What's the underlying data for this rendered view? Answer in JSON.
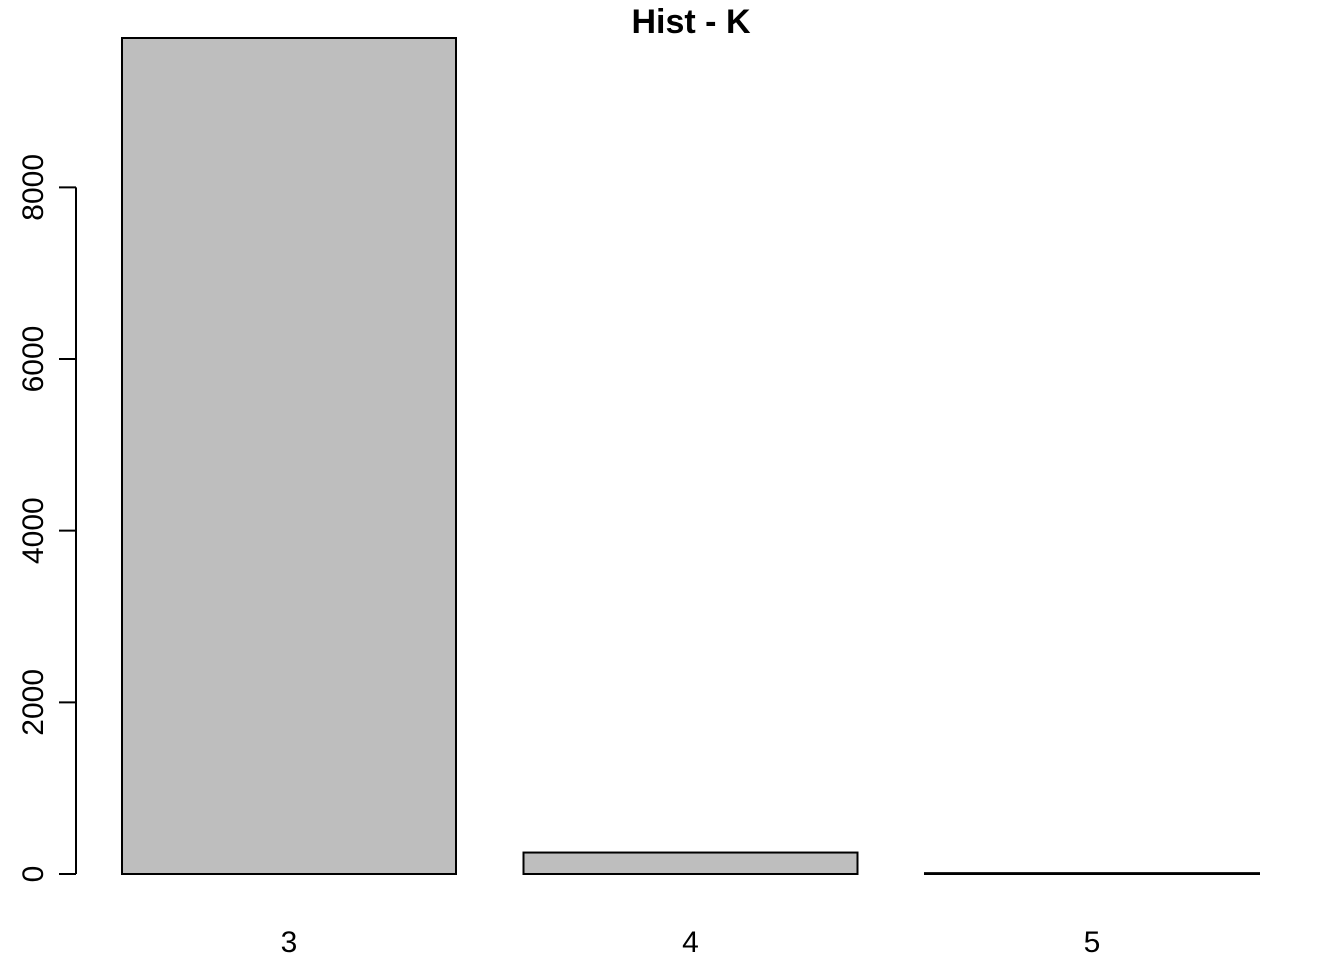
{
  "chart_data": {
    "type": "bar",
    "title": "Hist - K",
    "xlabel": "",
    "ylabel": "",
    "categories": [
      "3",
      "4",
      "5"
    ],
    "values": [
      9740,
      250,
      10
    ],
    "ylim": [
      0,
      9740
    ],
    "yticks": [
      0,
      2000,
      4000,
      6000,
      8000
    ],
    "ytick_labels": [
      "0",
      "2000",
      "4000",
      "6000",
      "8000"
    ],
    "bar_color": "#bebebe",
    "grid": false,
    "legend": "none"
  }
}
